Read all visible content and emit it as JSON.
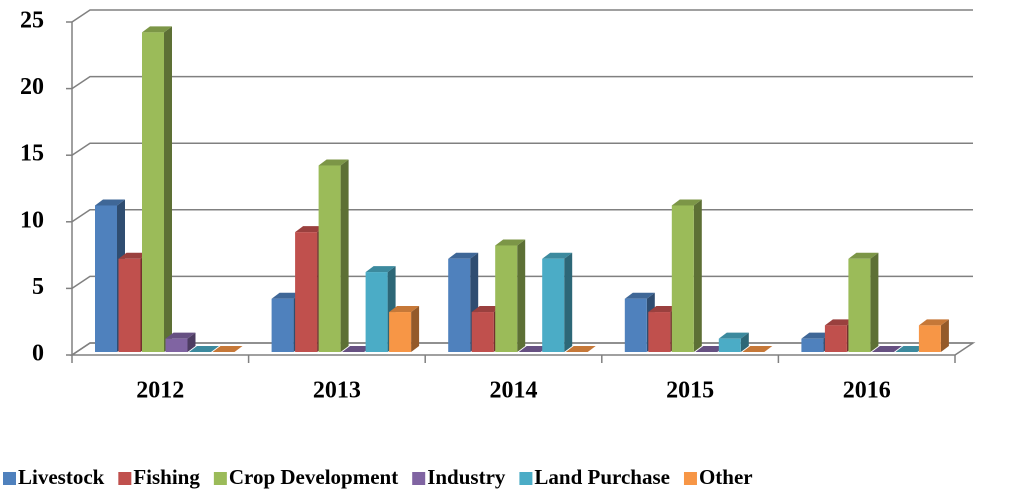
{
  "chart_data": {
    "type": "bar3d",
    "categories": [
      "2012",
      "2013",
      "2014",
      "2015",
      "2016"
    ],
    "series": [
      {
        "name": "Livestock",
        "color": "#4f81bd",
        "values": [
          11,
          4,
          7,
          4,
          1
        ]
      },
      {
        "name": "Fishing",
        "color": "#c0504d",
        "values": [
          7,
          9,
          3,
          3,
          2
        ]
      },
      {
        "name": "Crop Development",
        "color": "#9bbb59",
        "values": [
          24,
          14,
          8,
          11,
          7
        ]
      },
      {
        "name": "Industry",
        "color": "#8064a2",
        "values": [
          1,
          0,
          0,
          0,
          0
        ]
      },
      {
        "name": "Land Purchase",
        "color": "#4bacc6",
        "values": [
          0,
          6,
          7,
          1,
          0
        ]
      },
      {
        "name": "Other",
        "color": "#f79646",
        "values": [
          0,
          3,
          0,
          0,
          2
        ]
      }
    ],
    "ylim": [
      0,
      25
    ],
    "yticks": [
      0,
      5,
      10,
      15,
      20,
      25
    ],
    "grid": true,
    "legend": "bottom"
  }
}
